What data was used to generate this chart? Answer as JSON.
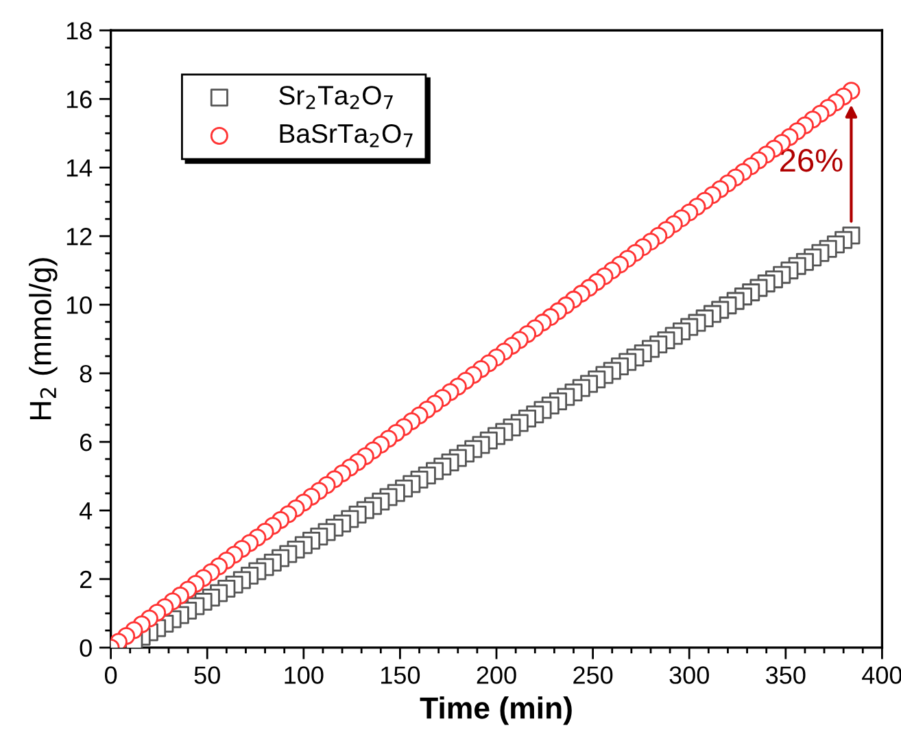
{
  "chart_data": {
    "type": "scatter",
    "xlabel": "Time (min)",
    "ylabel": "H$_{2}$ (mmol/g)",
    "x": [
      0,
      4,
      8,
      12,
      16,
      20,
      24,
      28,
      32,
      36,
      40,
      44,
      48,
      52,
      56,
      60,
      64,
      68,
      72,
      76,
      80,
      84,
      88,
      92,
      96,
      100,
      104,
      108,
      112,
      116,
      120,
      124,
      128,
      132,
      136,
      140,
      144,
      148,
      152,
      156,
      160,
      164,
      168,
      172,
      176,
      180,
      184,
      188,
      192,
      196,
      200,
      204,
      208,
      212,
      216,
      220,
      224,
      228,
      232,
      236,
      240,
      244,
      248,
      252,
      256,
      260,
      264,
      268,
      272,
      276,
      280,
      284,
      288,
      292,
      296,
      300,
      304,
      308,
      312,
      316,
      320,
      324,
      328,
      332,
      336,
      340,
      344,
      348,
      352,
      356,
      360,
      364,
      368,
      372,
      376,
      380,
      384
    ],
    "series": [
      {
        "name": "Sr$_{2}$Ta$_{2}$O$_{7}$",
        "color": "#555555",
        "marker": "square",
        "values": [
          null,
          null,
          null,
          0.19,
          0.32,
          0.45,
          0.57,
          0.7,
          0.83,
          0.95,
          1.08,
          1.21,
          1.34,
          1.46,
          1.59,
          1.72,
          1.84,
          1.97,
          2.1,
          2.23,
          2.35,
          2.48,
          2.61,
          2.73,
          2.86,
          2.99,
          3.12,
          3.24,
          3.37,
          3.5,
          3.62,
          3.75,
          3.88,
          4.01,
          4.13,
          4.26,
          4.39,
          4.51,
          4.64,
          4.77,
          4.9,
          5.02,
          5.15,
          5.28,
          5.4,
          5.53,
          5.66,
          5.79,
          5.91,
          6.04,
          6.17,
          6.29,
          6.42,
          6.55,
          6.68,
          6.8,
          6.93,
          7.06,
          7.18,
          7.31,
          7.44,
          7.57,
          7.69,
          7.82,
          7.95,
          8.07,
          8.2,
          8.33,
          8.46,
          8.58,
          8.71,
          8.84,
          8.96,
          9.09,
          9.22,
          9.35,
          9.47,
          9.6,
          9.73,
          9.85,
          9.98,
          10.11,
          10.24,
          10.36,
          10.49,
          10.62,
          10.74,
          10.87,
          11.0,
          11.13,
          11.25,
          11.38,
          11.51,
          11.63,
          11.76,
          11.89,
          12.02
        ]
      },
      {
        "name": "BaSrTa$_{2}$O$_{7}$",
        "color": "#ff3333",
        "marker": "circle",
        "values": [
          0,
          0.17,
          0.34,
          0.51,
          0.68,
          0.85,
          1.02,
          1.18,
          1.35,
          1.52,
          1.69,
          1.86,
          2.03,
          2.2,
          2.37,
          2.54,
          2.71,
          2.88,
          3.05,
          3.21,
          3.38,
          3.55,
          3.72,
          3.89,
          4.06,
          4.23,
          4.4,
          4.57,
          4.74,
          4.91,
          5.08,
          5.25,
          5.41,
          5.58,
          5.75,
          5.92,
          6.09,
          6.26,
          6.43,
          6.6,
          6.77,
          6.94,
          7.11,
          7.28,
          7.45,
          7.61,
          7.78,
          7.95,
          8.12,
          8.29,
          8.46,
          8.63,
          8.8,
          8.97,
          9.14,
          9.31,
          9.48,
          9.64,
          9.81,
          9.98,
          10.15,
          10.32,
          10.49,
          10.66,
          10.83,
          11.0,
          11.17,
          11.34,
          11.51,
          11.68,
          11.84,
          12.01,
          12.18,
          12.35,
          12.52,
          12.69,
          12.86,
          13.03,
          13.2,
          13.37,
          13.54,
          13.71,
          13.87,
          14.04,
          14.21,
          14.38,
          14.55,
          14.72,
          14.89,
          15.06,
          15.23,
          15.4,
          15.57,
          15.74,
          15.9,
          16.07,
          16.24
        ]
      }
    ],
    "annotations": [
      "26%"
    ],
    "xlim": [
      0,
      400
    ],
    "xticks": [
      0,
      50,
      100,
      150,
      200,
      250,
      300,
      350,
      400
    ],
    "ylim": [
      0,
      18
    ],
    "yticks": [
      0,
      2,
      4,
      6,
      8,
      10,
      12,
      14,
      16,
      18
    ],
    "legend": "top left",
    "grid": false
  }
}
